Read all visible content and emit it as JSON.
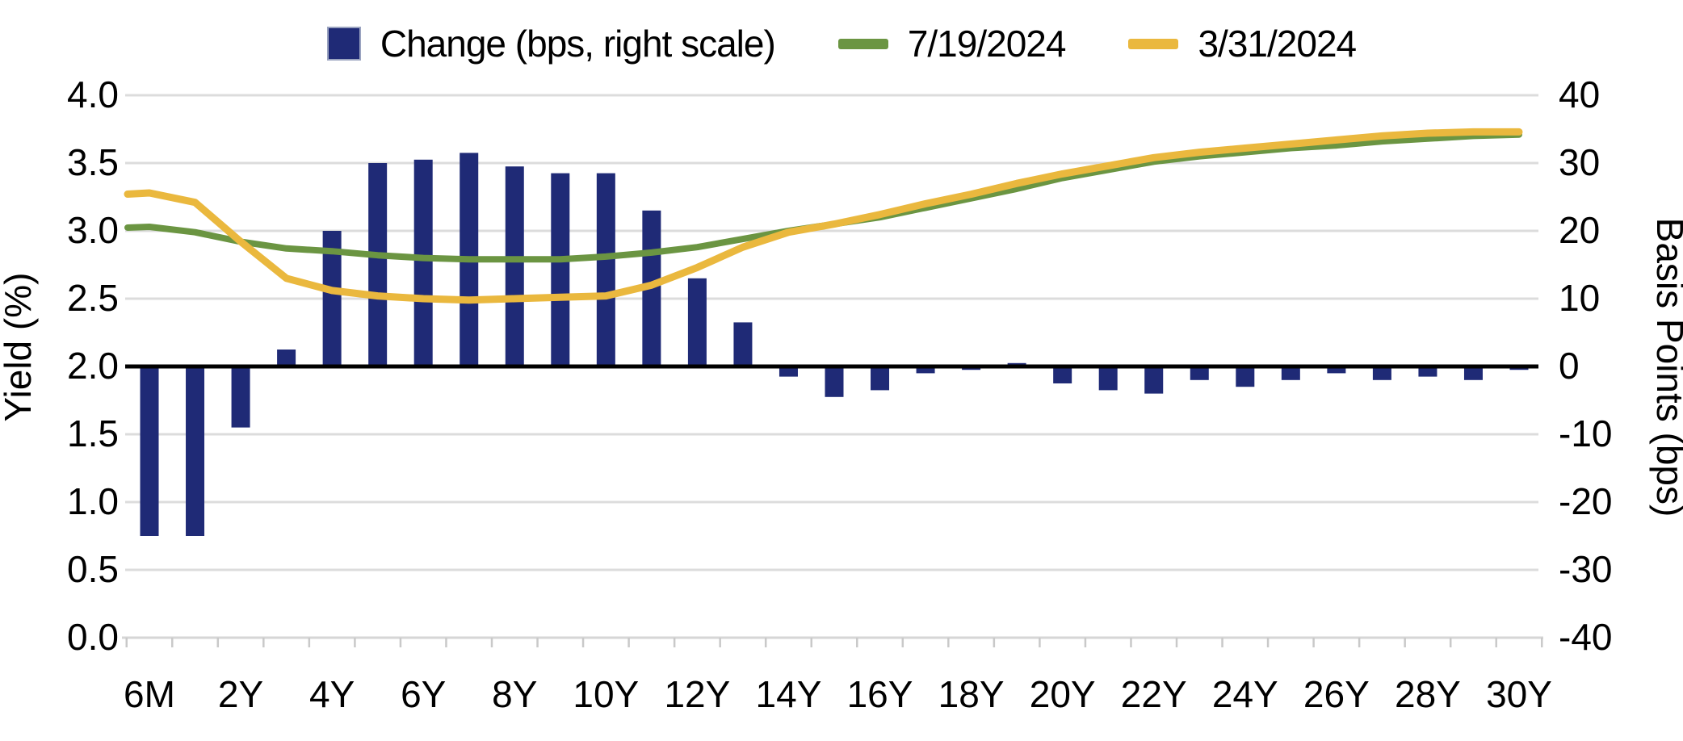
{
  "legend": {
    "items": [
      {
        "label": "Change (bps, right scale)",
        "marker": "square",
        "color": "#1f2a76"
      },
      {
        "label": "7/19/2024",
        "marker": "line",
        "color": "#6b9542"
      },
      {
        "label": "3/31/2024",
        "marker": "line",
        "color": "#eab83e"
      }
    ]
  },
  "chart_data": {
    "type": "combo",
    "title": "",
    "categories": [
      "6M",
      "1Y",
      "2Y",
      "3Y",
      "4Y",
      "5Y",
      "6Y",
      "7Y",
      "8Y",
      "9Y",
      "10Y",
      "11Y",
      "12Y",
      "13Y",
      "14Y",
      "15Y",
      "16Y",
      "17Y",
      "18Y",
      "19Y",
      "20Y",
      "21Y",
      "22Y",
      "23Y",
      "24Y",
      "25Y",
      "26Y",
      "27Y",
      "28Y",
      "29Y",
      "30Y"
    ],
    "x_tick_labels_shown": [
      "6M",
      "2Y",
      "4Y",
      "6Y",
      "8Y",
      "10Y",
      "12Y",
      "14Y",
      "16Y",
      "18Y",
      "20Y",
      "22Y",
      "24Y",
      "26Y",
      "28Y",
      "30Y"
    ],
    "series": [
      {
        "name": "Change (bps, right scale)",
        "type": "bar",
        "axis": "right",
        "color": "#1f2a76",
        "values": [
          -25,
          -25,
          -9,
          2.5,
          20,
          30,
          30.5,
          31.5,
          29.5,
          28.5,
          28.5,
          23,
          13,
          6.5,
          -1.5,
          -4.5,
          -3.5,
          -1,
          -0.5,
          0.5,
          -2.5,
          -3.5,
          -4,
          -2,
          -3,
          -2,
          -1,
          -2,
          -1.5,
          -2,
          -0.5
        ]
      },
      {
        "name": "7/19/2024",
        "type": "line",
        "axis": "left",
        "color": "#6b9542",
        "values": [
          3.03,
          2.99,
          2.92,
          2.87,
          2.85,
          2.82,
          2.8,
          2.79,
          2.79,
          2.79,
          2.81,
          2.84,
          2.88,
          2.94,
          3.0,
          3.05,
          3.1,
          3.17,
          3.24,
          3.31,
          3.39,
          3.45,
          3.51,
          3.55,
          3.58,
          3.61,
          3.63,
          3.66,
          3.68,
          3.7,
          3.71
        ]
      },
      {
        "name": "3/31/2024",
        "type": "line",
        "axis": "left",
        "color": "#eab83e",
        "values": [
          3.28,
          3.21,
          2.92,
          2.65,
          2.56,
          2.52,
          2.5,
          2.49,
          2.5,
          2.51,
          2.52,
          2.6,
          2.73,
          2.88,
          2.99,
          3.05,
          3.12,
          3.2,
          3.27,
          3.35,
          3.42,
          3.48,
          3.54,
          3.58,
          3.61,
          3.64,
          3.67,
          3.7,
          3.72,
          3.73,
          3.73
        ]
      }
    ],
    "left_axis": {
      "label": "Yield (%)",
      "min": 0.0,
      "max": 4.0,
      "ticks": [
        "4.0",
        "3.5",
        "3.0",
        "2.5",
        "2.0",
        "1.5",
        "1.0",
        "0.5",
        "0.0"
      ]
    },
    "right_axis": {
      "label": "Basis Points (bps)",
      "min": -40,
      "max": 40,
      "ticks": [
        "40",
        "30",
        "20",
        "10",
        "0",
        "-10",
        "-20",
        "-30",
        "-40"
      ]
    },
    "grid": true,
    "zero_line": true,
    "legend_position": "top"
  }
}
